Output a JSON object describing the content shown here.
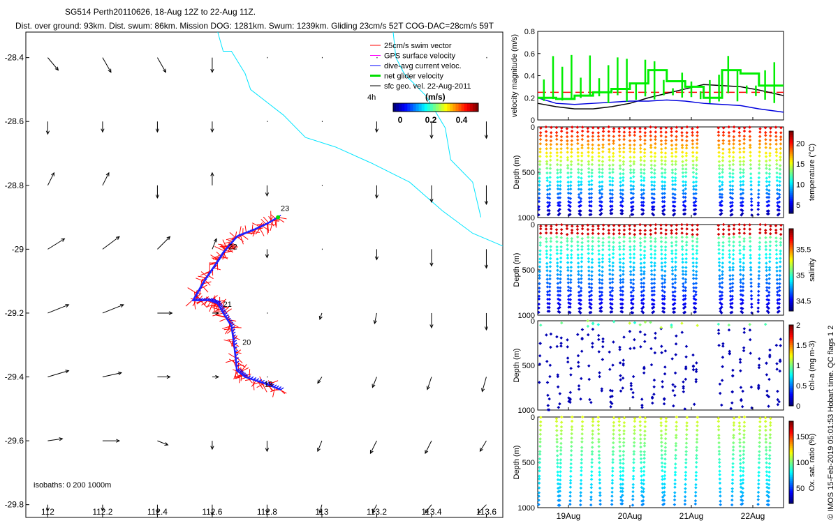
{
  "header": {
    "line1": "SG514 Perth20110626, 18-Aug 12Z to 22-Aug 11Z.",
    "line2": "Dist. over ground: 93km. Dist. swum: 86km. Mission DOG: 1281km. Swum: 1239km. Gliding 23cm/s 52T COG-DAC=28cm/s 59T"
  },
  "credit": "© IMOS 15-Feb-2019 05:01:53 Hobart time. QC flags 1  2",
  "chart_data": [
    {
      "type": "scatter",
      "panel": "map",
      "xlim": [
        111.92,
        113.66
      ],
      "ylim": [
        -29.84,
        -28.32
      ],
      "xticks": [
        112,
        112.2,
        112.4,
        112.6,
        112.8,
        113,
        113.2,
        113.4,
        113.6
      ],
      "xtick_labels": [
        "112",
        "112.2",
        "112.4",
        "112.6",
        "112.8",
        "113",
        "113.2",
        "113.4",
        "113.6"
      ],
      "yticks": [
        -28.4,
        -28.6,
        -28.8,
        -29,
        -29.2,
        -29.4,
        -29.6,
        -29.8
      ],
      "ytick_labels": [
        "-28.4",
        "-28.6",
        "-28.8",
        "-29",
        "-29.2",
        "-29.4",
        "-29.6",
        "-29.8"
      ],
      "legend": {
        "placement": "top-right",
        "entries": [
          {
            "label": "25cm/s swim vector",
            "color": "#ff0000"
          },
          {
            "label": "GPS surface velocity",
            "color": "#ff00ff"
          },
          {
            "label": "dive-avg current veloc.",
            "color": "#0000ff"
          },
          {
            "label": "net glider velocity",
            "color": "#00dd00"
          },
          {
            "label": "sfc geo. vel. 22-Aug-2011",
            "color": "#000000"
          }
        ],
        "note": "4h",
        "colorbar_label": "(m/s)",
        "colorbar_ticks": [
          "0",
          "0.2",
          "0.4"
        ]
      },
      "day_labels": [
        {
          "label": "23",
          "lon": 112.85,
          "lat": -28.88
        },
        {
          "label": "22",
          "lon": 112.66,
          "lat": -29.0
        },
        {
          "label": "21",
          "lon": 112.64,
          "lat": -29.18
        },
        {
          "label": "20",
          "lon": 112.71,
          "lat": -29.3
        },
        {
          "label": "19",
          "lon": 112.79,
          "lat": -29.43
        }
      ],
      "isobath_label": "isobaths: 0   200  1000m",
      "isobath_200m": [
        [
          112.62,
          -28.32
        ],
        [
          112.64,
          -28.38
        ],
        [
          112.67,
          -28.38
        ],
        [
          112.72,
          -28.45
        ],
        [
          112.74,
          -28.5
        ],
        [
          112.8,
          -28.54
        ],
        [
          112.86,
          -28.58
        ],
        [
          112.94,
          -28.65
        ],
        [
          113.05,
          -28.68
        ],
        [
          113.18,
          -28.73
        ],
        [
          113.32,
          -28.79
        ],
        [
          113.44,
          -28.88
        ],
        [
          113.55,
          -28.95
        ],
        [
          113.66,
          -28.99
        ]
      ],
      "isobath_1000m": [
        [
          113.26,
          -28.32
        ],
        [
          113.27,
          -28.4
        ],
        [
          113.3,
          -28.45
        ],
        [
          113.38,
          -28.52
        ],
        [
          113.45,
          -28.62
        ],
        [
          113.47,
          -28.72
        ],
        [
          113.55,
          -28.79
        ],
        [
          113.58,
          -28.9
        ]
      ],
      "track": [
        [
          112.85,
          -29.44
        ],
        [
          112.79,
          -29.42
        ],
        [
          112.72,
          -29.4
        ],
        [
          112.69,
          -29.38
        ],
        [
          112.68,
          -29.3
        ],
        [
          112.67,
          -29.24
        ],
        [
          112.64,
          -29.2
        ],
        [
          112.62,
          -29.17
        ],
        [
          112.59,
          -29.16
        ],
        [
          112.53,
          -29.16
        ],
        [
          112.57,
          -29.1
        ],
        [
          112.61,
          -29.05
        ],
        [
          112.64,
          -29.01
        ],
        [
          112.66,
          -28.99
        ],
        [
          112.69,
          -28.96
        ],
        [
          112.75,
          -28.94
        ],
        [
          112.8,
          -28.92
        ],
        [
          112.84,
          -28.9
        ]
      ],
      "current_field": {
        "lons": [
          112.0,
          112.2,
          112.4,
          112.6,
          112.8,
          113.0,
          113.2,
          113.4,
          113.6
        ],
        "lats": [
          -28.4,
          -28.6,
          -28.8,
          -29.0,
          -29.2,
          -29.4,
          -29.6,
          -29.8
        ],
        "u": [
          [
            0.05,
            0.04,
            0.04,
            0.0,
            0.0,
            0.0,
            0.0,
            0.0,
            0.0
          ],
          [
            0.0,
            0.0,
            0.0,
            0.0,
            0.0,
            0.0,
            0.0,
            0.0,
            0.0
          ],
          [
            0.03,
            0.03,
            0.0,
            0.0,
            0.0,
            0.0,
            0.0,
            0.0,
            0.0
          ],
          [
            0.08,
            0.08,
            0.06,
            0.02,
            0.0,
            0.0,
            0.0,
            0.0,
            0.0
          ],
          [
            0.1,
            0.1,
            0.07,
            0.03,
            0.0,
            -0.01,
            -0.01,
            0.0,
            0.0
          ],
          [
            0.1,
            0.09,
            0.06,
            0.03,
            0.0,
            -0.02,
            -0.02,
            -0.02,
            -0.02
          ],
          [
            0.07,
            0.08,
            0.05,
            0.0,
            0.0,
            -0.02,
            -0.03,
            -0.03,
            -0.03
          ],
          [
            0.0,
            0.0,
            0.0,
            0.0,
            0.0,
            -0.01,
            -0.02,
            -0.03,
            -0.04
          ]
        ],
        "v": [
          [
            -0.06,
            -0.07,
            -0.07,
            -0.07,
            0.0,
            0.0,
            0.0,
            0.0,
            0.0
          ],
          [
            -0.06,
            -0.05,
            -0.05,
            -0.05,
            0.0,
            0.0,
            -0.05,
            -0.08,
            -0.08
          ],
          [
            0.06,
            0.06,
            -0.06,
            0.06,
            -0.05,
            0.0,
            -0.06,
            -0.08,
            -0.09
          ],
          [
            0.05,
            0.06,
            0.06,
            0.05,
            -0.04,
            0.0,
            -0.05,
            -0.08,
            -0.09
          ],
          [
            0.04,
            0.04,
            0.0,
            0.0,
            0.0,
            -0.03,
            -0.05,
            -0.07,
            -0.08
          ],
          [
            0.03,
            0.02,
            0.0,
            0.0,
            0.0,
            -0.03,
            -0.05,
            -0.06,
            -0.07
          ],
          [
            0.01,
            0.0,
            -0.02,
            -0.04,
            -0.05,
            -0.05,
            -0.06,
            -0.06,
            -0.05
          ],
          [
            -0.03,
            -0.03,
            -0.04,
            -0.05,
            -0.04,
            -0.04,
            -0.04,
            -0.04,
            -0.04
          ]
        ]
      }
    },
    {
      "type": "line",
      "panel": "velocity",
      "ylabel": "velocity magnitude (m/s)",
      "ylim": [
        0,
        0.8
      ],
      "yticks": [
        0,
        0.2,
        0.4,
        0.6,
        0.8
      ],
      "xlim": [
        18.5,
        22.5
      ],
      "series": [
        {
          "color": "#ff0000",
          "dashed": true,
          "x": [
            18.5,
            22.5
          ],
          "y": [
            0.25,
            0.25
          ]
        },
        {
          "color": "#000000",
          "x": [
            18.5,
            18.8,
            19.1,
            19.4,
            19.7,
            20.0,
            20.3,
            20.6,
            20.9,
            21.2,
            21.5,
            21.8,
            22.1,
            22.5
          ],
          "y": [
            0.15,
            0.12,
            0.1,
            0.1,
            0.12,
            0.15,
            0.2,
            0.24,
            0.28,
            0.32,
            0.31,
            0.3,
            0.27,
            0.22
          ]
        },
        {
          "color": "#0000dd",
          "x": [
            18.5,
            18.8,
            19.1,
            19.4,
            19.7,
            20.0,
            20.3,
            20.6,
            20.9,
            21.2,
            21.5,
            21.8,
            22.1,
            22.5
          ],
          "y": [
            0.2,
            0.15,
            0.14,
            0.15,
            0.16,
            0.17,
            0.17,
            0.18,
            0.17,
            0.15,
            0.14,
            0.13,
            0.1,
            0.07
          ]
        },
        {
          "color": "#00ee00",
          "x": [
            18.5,
            18.8,
            18.8,
            19.1,
            19.1,
            19.4,
            19.4,
            19.7,
            19.7,
            20.0,
            20.0,
            20.3,
            20.3,
            20.6,
            20.6,
            20.9,
            20.9,
            21.2,
            21.2,
            21.5,
            21.5,
            21.8,
            21.8,
            22.1,
            22.1,
            22.5
          ],
          "y": [
            0.2,
            0.2,
            0.19,
            0.19,
            0.22,
            0.22,
            0.25,
            0.25,
            0.28,
            0.28,
            0.33,
            0.33,
            0.45,
            0.45,
            0.35,
            0.35,
            0.3,
            0.3,
            0.2,
            0.2,
            0.45,
            0.45,
            0.42,
            0.42,
            0.31,
            0.31
          ]
        }
      ]
    },
    {
      "type": "scatter",
      "panel": "temperature",
      "ylabel": "Depth (m)",
      "ylim": [
        1000,
        0
      ],
      "yticks": [
        0,
        500,
        1000
      ],
      "colorbar_label": "temperature (°C)",
      "colorbar_ticks": [
        5,
        10,
        15,
        20
      ],
      "clim": [
        3,
        23
      ]
    },
    {
      "type": "scatter",
      "panel": "salinity",
      "ylabel": "Depth (m)",
      "ylim": [
        1000,
        0
      ],
      "yticks": [
        0,
        500,
        1000
      ],
      "colorbar_label": "salinity",
      "colorbar_ticks": [
        34.5,
        35,
        35.5
      ],
      "clim": [
        34.3,
        35.9
      ]
    },
    {
      "type": "scatter",
      "panel": "chla",
      "ylabel": "Depth (m)",
      "ylim": [
        1000,
        0
      ],
      "yticks": [
        0,
        500,
        1000
      ],
      "colorbar_label": "chl-a (mg m-3)",
      "colorbar_ticks": [
        0,
        0.5,
        1,
        1.5,
        2
      ],
      "clim": [
        0,
        2
      ]
    },
    {
      "type": "scatter",
      "panel": "oxygen",
      "ylabel": "Depth (m)",
      "ylim": [
        1000,
        0
      ],
      "yticks": [
        0,
        500,
        1000
      ],
      "colorbar_label": "Ox. sat. ratio (%)",
      "colorbar_ticks": [
        50,
        100,
        150
      ],
      "clim": [
        20,
        180
      ],
      "xticks": [
        19,
        20,
        21,
        22
      ],
      "xtick_labels": [
        "19Aug",
        "20Aug",
        "21Aug",
        "22Aug"
      ]
    }
  ]
}
